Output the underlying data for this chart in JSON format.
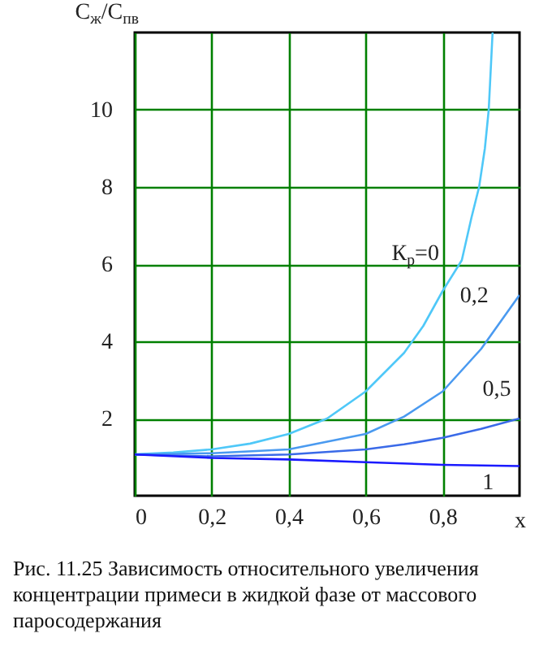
{
  "chart_data": {
    "type": "line",
    "ylabel": "С$_{ж}$/С$_{пв}$",
    "xlabel": "x",
    "annotations": [
      "Рис. 11.25 Зависимость относительного увеличения концентрации примеси в жидкой фазе от массового паросодержания"
    ],
    "xlim": [
      0,
      1
    ],
    "ylim": [
      0,
      12
    ],
    "xticks": [
      0,
      {
        "value": 0.2,
        "label": "0,2"
      },
      {
        "value": 0.4,
        "label": "0,4"
      },
      {
        "value": 0.6,
        "label": "0,6"
      },
      {
        "value": 0.8,
        "label": "0,8"
      }
    ],
    "yticks": [
      2,
      4,
      6,
      8,
      10
    ],
    "grid": true,
    "legend": false,
    "marker": "none",
    "line_style": "solid",
    "series": [
      {
        "name": "К$_{р}$=0",
        "color": "#4fc8f8",
        "x": [
          0,
          0.1,
          0.2,
          0.3,
          0.4,
          0.5,
          0.6,
          0.7,
          0.75,
          0.8,
          0.85,
          0.875,
          0.895,
          0.91,
          0.92,
          0.93
        ],
        "values": [
          1.07,
          1.12,
          1.2,
          1.35,
          1.6,
          2.0,
          2.7,
          3.7,
          4.4,
          5.3,
          6.1,
          7.2,
          8,
          9,
          10,
          12
        ]
      },
      {
        "name": "0,2",
        "color": "#4a9af0",
        "x": [
          0,
          0.2,
          0.4,
          0.5,
          0.6,
          0.7,
          0.8,
          0.9,
          0.95,
          1
        ],
        "values": [
          1.07,
          1.1,
          1.2,
          1.4,
          1.6,
          2.05,
          2.7,
          3.8,
          4.5,
          5.2
        ]
      },
      {
        "name": "0,5",
        "color": "#3a6ae8",
        "x": [
          0,
          0.2,
          0.4,
          0.6,
          0.7,
          0.8,
          0.9,
          1
        ],
        "values": [
          1.07,
          1.02,
          1.07,
          1.2,
          1.33,
          1.5,
          1.73,
          2.0
        ]
      },
      {
        "name": "1",
        "color": "#1a1aff",
        "x": [
          0,
          0.2,
          0.4,
          0.6,
          0.8,
          1
        ],
        "values": [
          1.07,
          0.98,
          0.94,
          0.87,
          0.8,
          0.77
        ]
      }
    ]
  }
}
